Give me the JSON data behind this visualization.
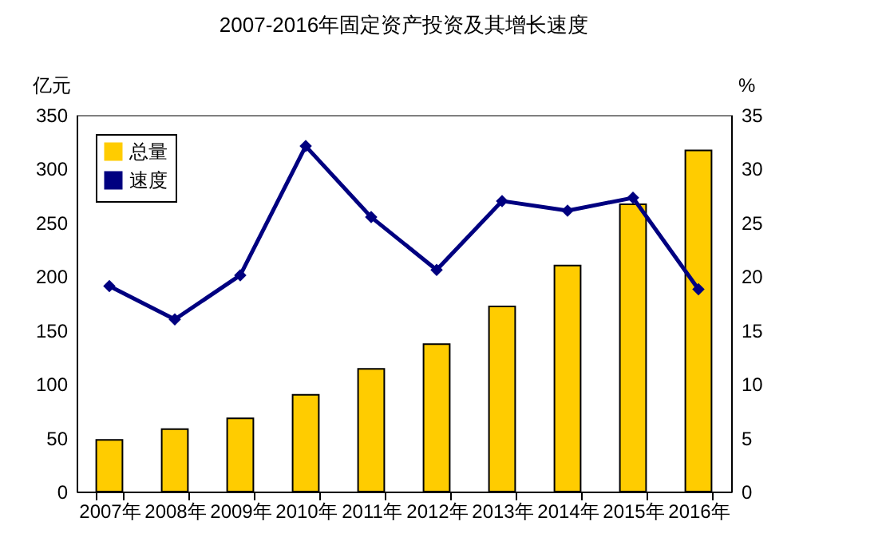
{
  "chart_data": {
    "type": "bar",
    "title": "2007-2016年固定资产投资及其增长速度",
    "ylabel": "亿元",
    "y2label": "%",
    "categories": [
      "2007年",
      "2008年",
      "2009年",
      "2010年",
      "2011年",
      "2012年",
      "2013年",
      "2014年",
      "2015年",
      "2016年"
    ],
    "series": [
      {
        "name": "总量",
        "color": "#ffcc00",
        "values": [
          48,
          58,
          68,
          90,
          114,
          137,
          172,
          210,
          267,
          317
        ]
      },
      {
        "name": "速度",
        "type": "line",
        "axis": "y2",
        "color": "#000080",
        "values": [
          19.1,
          16.0,
          20.1,
          32.1,
          25.5,
          20.6,
          27.0,
          26.1,
          27.3,
          18.8
        ]
      }
    ],
    "ylim": [
      0,
      350
    ],
    "yticks": [
      0,
      50,
      100,
      150,
      200,
      250,
      300,
      350
    ],
    "y2lim": [
      0,
      35
    ],
    "y2ticks": [
      0,
      5,
      10,
      15,
      20,
      25,
      30,
      35
    ],
    "marker": "diamond",
    "legend": "top left",
    "grid": false
  }
}
